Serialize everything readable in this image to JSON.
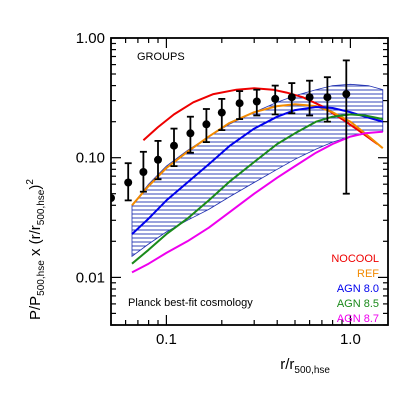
{
  "chart_data": {
    "type": "line",
    "title": "",
    "xlabel": {
      "main": "r/r",
      "sub": "500,hse"
    },
    "ylabel": {
      "p1": "P/P",
      "sub1": "500,hse",
      "p2": " x (r/r",
      "sub2": "500,hse",
      "p3": ")",
      "sup": "2"
    },
    "xscale": "log",
    "yscale": "log",
    "xlim": [
      0.05,
      1.6
    ],
    "ylim": [
      0.004,
      1.0
    ],
    "xticks": [
      {
        "value": 0.1,
        "label": "0.1"
      },
      {
        "value": 1.0,
        "label": "1.0"
      }
    ],
    "yticks": [
      {
        "value": 0.01,
        "label": "0.01"
      },
      {
        "value": 0.1,
        "label": "0.10"
      },
      {
        "value": 1.0,
        "label": "1.00"
      }
    ],
    "grid": false,
    "annotations": {
      "group_label": "GROUPS",
      "cosmology_label": "Planck best-fit cosmology"
    },
    "legend_position": "bottom-right",
    "observed_band": {
      "name": "",
      "color": "#1f2fb0",
      "style": "horizontal-hatch",
      "x": [
        0.065,
        0.08,
        0.1,
        0.13,
        0.17,
        0.22,
        0.3,
        0.4,
        0.5,
        0.65,
        0.8,
        1.0,
        1.25,
        1.5
      ],
      "upper": [
        0.04,
        0.06,
        0.085,
        0.115,
        0.15,
        0.19,
        0.24,
        0.29,
        0.33,
        0.37,
        0.4,
        0.41,
        0.4,
        0.37
      ],
      "lower": [
        0.015,
        0.019,
        0.024,
        0.03,
        0.037,
        0.047,
        0.062,
        0.08,
        0.097,
        0.118,
        0.135,
        0.15,
        0.16,
        0.165
      ]
    },
    "data_points": {
      "name": "",
      "color": "#000000",
      "points": [
        {
          "x": 0.05,
          "y": 0.046,
          "lo": 0.046,
          "hi": 0.046
        },
        {
          "x": 0.062,
          "y": 0.062,
          "lo": 0.044,
          "hi": 0.09
        },
        {
          "x": 0.075,
          "y": 0.076,
          "lo": 0.052,
          "hi": 0.112
        },
        {
          "x": 0.09,
          "y": 0.096,
          "lo": 0.066,
          "hi": 0.138
        },
        {
          "x": 0.11,
          "y": 0.126,
          "lo": 0.085,
          "hi": 0.175
        },
        {
          "x": 0.135,
          "y": 0.16,
          "lo": 0.11,
          "hi": 0.22
        },
        {
          "x": 0.165,
          "y": 0.19,
          "lo": 0.135,
          "hi": 0.255
        },
        {
          "x": 0.2,
          "y": 0.238,
          "lo": 0.17,
          "hi": 0.31
        },
        {
          "x": 0.25,
          "y": 0.285,
          "lo": 0.21,
          "hi": 0.36
        },
        {
          "x": 0.31,
          "y": 0.295,
          "lo": 0.225,
          "hi": 0.37
        },
        {
          "x": 0.39,
          "y": 0.31,
          "lo": 0.23,
          "hi": 0.4
        },
        {
          "x": 0.48,
          "y": 0.32,
          "lo": 0.235,
          "hi": 0.42
        },
        {
          "x": 0.6,
          "y": 0.32,
          "lo": 0.225,
          "hi": 0.44
        },
        {
          "x": 0.75,
          "y": 0.32,
          "lo": 0.2,
          "hi": 0.47
        },
        {
          "x": 0.95,
          "y": 0.34,
          "lo": 0.05,
          "hi": 0.65
        }
      ]
    },
    "series": [
      {
        "name": "NOCOOL",
        "color": "#ee0000",
        "x": [
          0.075,
          0.09,
          0.11,
          0.14,
          0.18,
          0.24,
          0.3,
          0.38,
          0.45,
          0.55,
          0.7,
          0.9,
          1.1,
          1.4
        ],
        "y": [
          0.14,
          0.18,
          0.23,
          0.29,
          0.34,
          0.37,
          0.38,
          0.37,
          0.35,
          0.32,
          0.27,
          0.21,
          0.17,
          0.13
        ]
      },
      {
        "name": "REF",
        "color": "#f28a00",
        "x": [
          0.065,
          0.08,
          0.1,
          0.13,
          0.17,
          0.22,
          0.3,
          0.4,
          0.5,
          0.65,
          0.8,
          1.0,
          1.2,
          1.5
        ],
        "y": [
          0.04,
          0.058,
          0.082,
          0.112,
          0.15,
          0.195,
          0.24,
          0.27,
          0.28,
          0.27,
          0.24,
          0.2,
          0.16,
          0.12
        ]
      },
      {
        "name": "AGN 8.0",
        "color": "#0000ee",
        "x": [
          0.065,
          0.08,
          0.1,
          0.13,
          0.17,
          0.22,
          0.3,
          0.4,
          0.5,
          0.65,
          0.8,
          1.0,
          1.2,
          1.5
        ],
        "y": [
          0.023,
          0.031,
          0.044,
          0.062,
          0.088,
          0.125,
          0.175,
          0.22,
          0.25,
          0.265,
          0.26,
          0.24,
          0.22,
          0.2
        ]
      },
      {
        "name": "AGN 8.5",
        "color": "#1a8a1a",
        "x": [
          0.065,
          0.08,
          0.1,
          0.13,
          0.17,
          0.22,
          0.3,
          0.4,
          0.5,
          0.65,
          0.8,
          1.0,
          1.2,
          1.5
        ],
        "y": [
          0.013,
          0.017,
          0.023,
          0.031,
          0.044,
          0.063,
          0.092,
          0.13,
          0.16,
          0.2,
          0.22,
          0.23,
          0.225,
          0.21
        ]
      },
      {
        "name": "AGN 8.7",
        "color": "#ee00ee",
        "x": [
          0.065,
          0.08,
          0.1,
          0.13,
          0.17,
          0.22,
          0.3,
          0.4,
          0.5,
          0.65,
          0.8,
          1.0,
          1.2,
          1.5
        ],
        "y": [
          0.011,
          0.013,
          0.016,
          0.02,
          0.026,
          0.035,
          0.05,
          0.068,
          0.085,
          0.11,
          0.13,
          0.15,
          0.16,
          0.165
        ]
      }
    ]
  }
}
